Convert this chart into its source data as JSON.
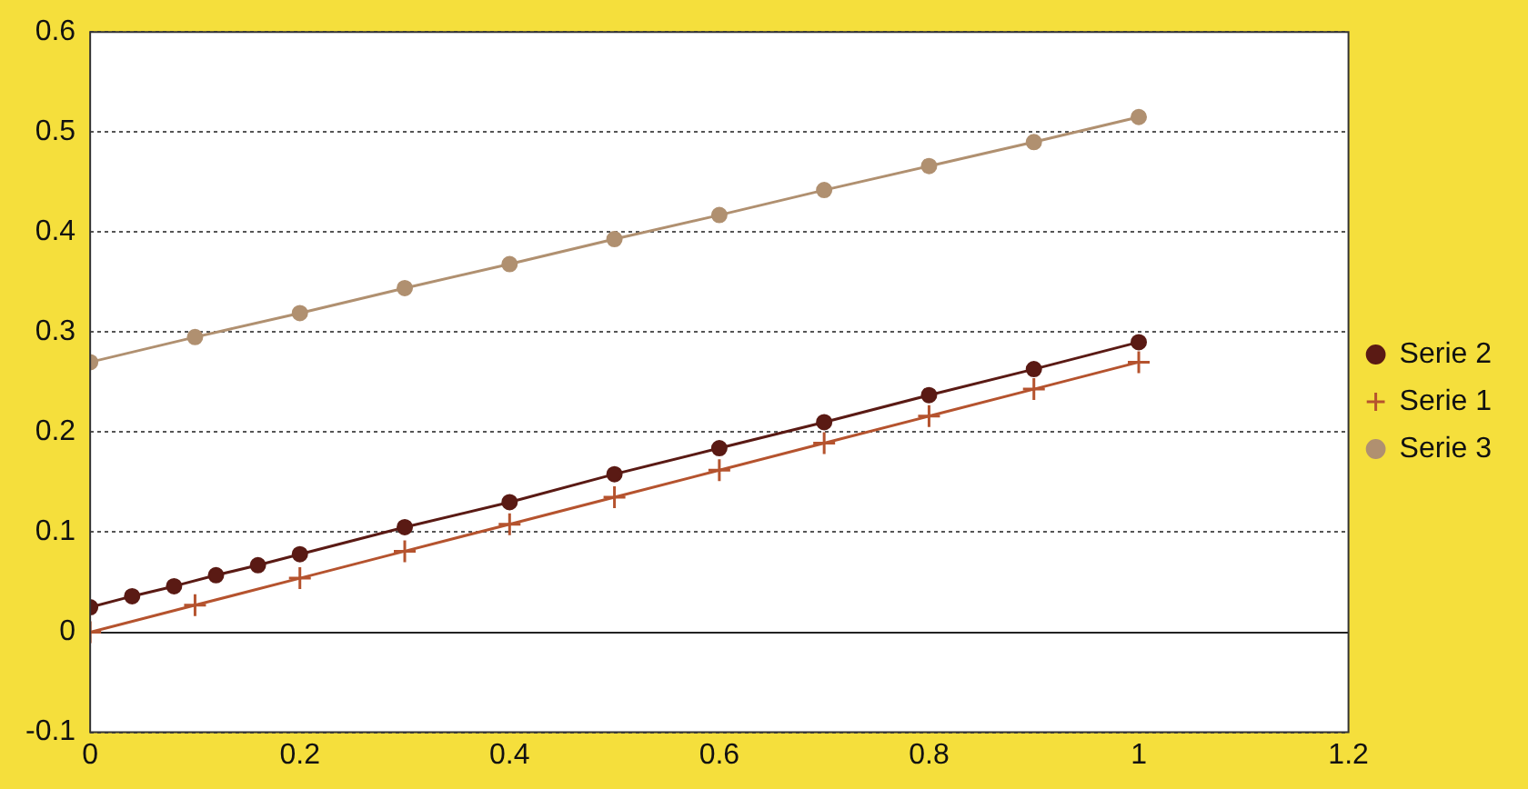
{
  "chart_data": {
    "type": "line",
    "xlim": [
      0,
      1.2
    ],
    "xticks": [
      0,
      0.2,
      0.4,
      0.6,
      0.8,
      1,
      1.2
    ],
    "ylim": [
      -0.1,
      0.6
    ],
    "yticks": [
      -0.1,
      0,
      0.1,
      0.2,
      0.3,
      0.4,
      0.5,
      0.6
    ],
    "grid": "y",
    "legend": "right",
    "line_style": "solid",
    "series": [
      {
        "name": "Serie 2",
        "color": "#5a1a14",
        "marker": "circle",
        "x": [
          0,
          0.04,
          0.08,
          0.12,
          0.16,
          0.2,
          0.3,
          0.4,
          0.5,
          0.6,
          0.7,
          0.8,
          0.9,
          1
        ],
        "values": [
          0.025,
          0.036,
          0.046,
          0.057,
          0.067,
          0.078,
          0.105,
          0.13,
          0.158,
          0.184,
          0.21,
          0.237,
          0.263,
          0.29
        ]
      },
      {
        "name": "Serie 1",
        "color": "#b5532e",
        "marker": "cross",
        "x": [
          0,
          0.1,
          0.2,
          0.3,
          0.4,
          0.5,
          0.6,
          0.7,
          0.8,
          0.9,
          1
        ],
        "values": [
          0,
          0.027,
          0.054,
          0.081,
          0.108,
          0.135,
          0.162,
          0.189,
          0.216,
          0.243,
          0.27
        ]
      },
      {
        "name": "Serie 3",
        "color": "#b09070",
        "marker": "circle",
        "x": [
          0,
          0.1,
          0.2,
          0.3,
          0.4,
          0.5,
          0.6,
          0.7,
          0.8,
          0.9,
          1
        ],
        "values": [
          0.27,
          0.295,
          0.319,
          0.344,
          0.368,
          0.393,
          0.417,
          0.442,
          0.466,
          0.49,
          0.515
        ]
      }
    ]
  }
}
